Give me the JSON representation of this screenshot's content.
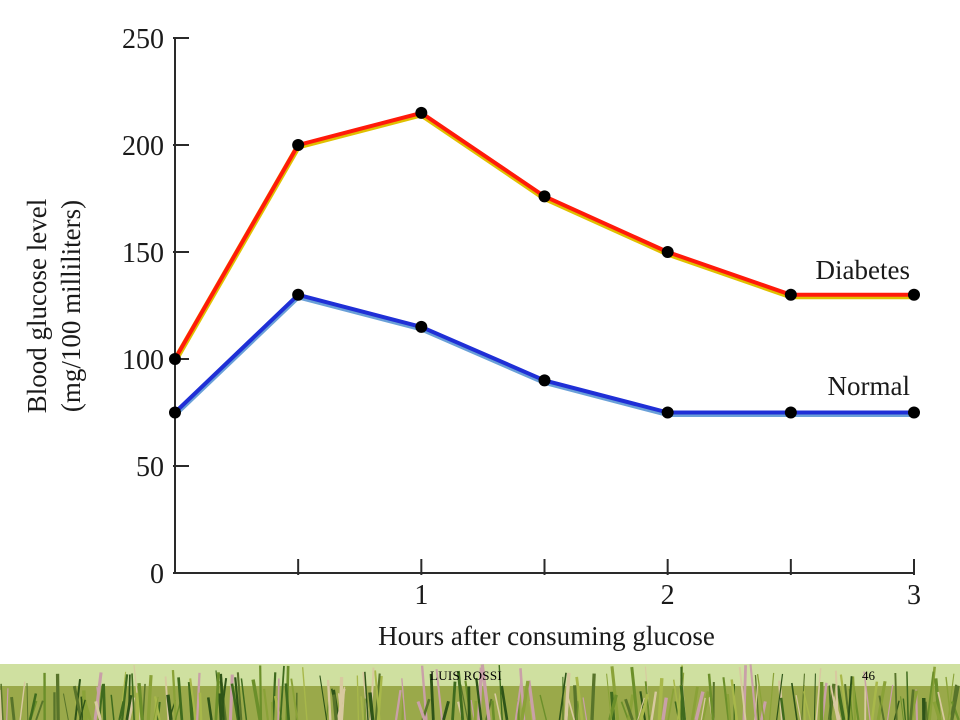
{
  "slide": {
    "author": "LUIS ROSSI",
    "page_number": "46"
  },
  "colors": {
    "diabetes_line": "#ff1a0a",
    "diabetes_edge": "#e0c000",
    "normal_line": "#1f2fd6",
    "normal_edge": "#6aa0d8",
    "marker": "#000000",
    "axis": "#2a2a2a",
    "text": "#1a1a1a"
  },
  "chart_data": {
    "type": "line",
    "title": "",
    "xlabel": "Hours after consuming glucose",
    "ylabel": "Blood glucose level",
    "ylabel2": "(mg/100 milliliters)",
    "xlim": [
      0,
      3
    ],
    "ylim": [
      0,
      250
    ],
    "x_ticks": [
      0.5,
      1,
      1.5,
      2,
      2.5,
      3
    ],
    "x_tick_labels": [
      {
        "x": 1,
        "label": "1"
      },
      {
        "x": 2,
        "label": "2"
      },
      {
        "x": 3,
        "label": "3"
      }
    ],
    "y_ticks": [
      0,
      50,
      100,
      150,
      200,
      250
    ],
    "y_tick_labels": [
      "0",
      "50",
      "100",
      "150",
      "200",
      "250"
    ],
    "grid": false,
    "legend": "inline labels at right end of each line",
    "x": [
      0,
      0.5,
      1,
      1.5,
      2,
      2.5,
      3
    ],
    "series": [
      {
        "name": "Diabetes",
        "values": [
          100,
          200,
          215,
          176,
          150,
          130,
          130
        ]
      },
      {
        "name": "Normal",
        "values": [
          75,
          130,
          115,
          90,
          75,
          75,
          75
        ]
      }
    ]
  }
}
